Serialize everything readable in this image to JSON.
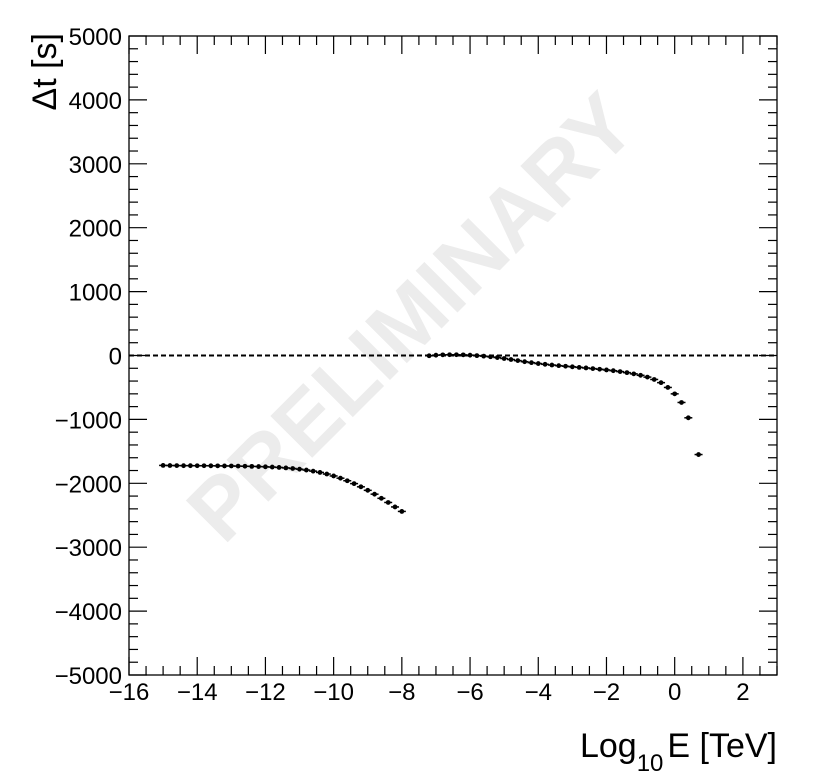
{
  "chart_data": {
    "type": "scatter",
    "title": "",
    "xlabel_main": "Log",
    "xlabel_sub": "10",
    "xlabel_rest": "E [TeV]",
    "ylabel": "Δt [s]",
    "watermark": "PRELIMINARY",
    "xlim": [
      -16,
      3
    ],
    "ylim": [
      -5000,
      5000
    ],
    "x_ticks": [
      -16,
      -14,
      -12,
      -10,
      -8,
      -6,
      -4,
      -2,
      0,
      2
    ],
    "x_tick_labels": [
      "−16",
      "−14",
      "−12",
      "−10",
      "−8",
      "−6",
      "−4",
      "−2",
      "0",
      "2"
    ],
    "y_ticks": [
      -5000,
      -4000,
      -3000,
      -2000,
      -1000,
      0,
      1000,
      2000,
      3000,
      4000,
      5000
    ],
    "y_tick_labels": [
      "−5000",
      "−4000",
      "−3000",
      "−2000",
      "−1000",
      "0",
      "1000",
      "2000",
      "3000",
      "4000",
      "5000"
    ],
    "grid": false,
    "reference_line": {
      "y": 0,
      "style": "dashed"
    },
    "series": [
      {
        "points": [
          [
            -15.0,
            -1720
          ],
          [
            -14.8,
            -1722
          ],
          [
            -14.6,
            -1723
          ],
          [
            -14.4,
            -1724
          ],
          [
            -14.2,
            -1724
          ],
          [
            -14.0,
            -1725
          ],
          [
            -13.8,
            -1725
          ],
          [
            -13.6,
            -1726
          ],
          [
            -13.4,
            -1727
          ],
          [
            -13.2,
            -1728
          ],
          [
            -13.0,
            -1729
          ],
          [
            -12.8,
            -1731
          ],
          [
            -12.6,
            -1733
          ],
          [
            -12.4,
            -1735
          ],
          [
            -12.2,
            -1738
          ],
          [
            -12.0,
            -1742
          ],
          [
            -11.8,
            -1746
          ],
          [
            -11.6,
            -1752
          ],
          [
            -11.4,
            -1759
          ],
          [
            -11.2,
            -1768
          ],
          [
            -11.0,
            -1779
          ],
          [
            -10.8,
            -1793
          ],
          [
            -10.6,
            -1810
          ],
          [
            -10.4,
            -1830
          ],
          [
            -10.2,
            -1855
          ],
          [
            -10.0,
            -1885
          ],
          [
            -9.8,
            -1920
          ],
          [
            -9.6,
            -1960
          ],
          [
            -9.4,
            -2005
          ],
          [
            -9.2,
            -2055
          ],
          [
            -9.0,
            -2110
          ],
          [
            -8.8,
            -2170
          ],
          [
            -8.6,
            -2235
          ],
          [
            -8.4,
            -2300
          ],
          [
            -8.2,
            -2370
          ],
          [
            -8.0,
            -2440
          ],
          [
            -7.2,
            -4
          ],
          [
            -7.0,
            5
          ],
          [
            -6.8,
            10
          ],
          [
            -6.6,
            12
          ],
          [
            -6.4,
            12
          ],
          [
            -6.2,
            10
          ],
          [
            -6.0,
            5
          ],
          [
            -5.8,
            -2
          ],
          [
            -5.6,
            -10
          ],
          [
            -5.4,
            -20
          ],
          [
            -5.2,
            -32
          ],
          [
            -5.0,
            -47
          ],
          [
            -4.8,
            -63
          ],
          [
            -4.6,
            -80
          ],
          [
            -4.4,
            -97
          ],
          [
            -4.2,
            -112
          ],
          [
            -4.0,
            -126
          ],
          [
            -3.8,
            -138
          ],
          [
            -3.6,
            -149
          ],
          [
            -3.4,
            -159
          ],
          [
            -3.2,
            -168
          ],
          [
            -3.0,
            -177
          ],
          [
            -2.8,
            -186
          ],
          [
            -2.6,
            -195
          ],
          [
            -2.4,
            -205
          ],
          [
            -2.2,
            -215
          ],
          [
            -2.0,
            -226
          ],
          [
            -1.8,
            -238
          ],
          [
            -1.6,
            -252
          ],
          [
            -1.4,
            -268
          ],
          [
            -1.2,
            -287
          ],
          [
            -1.0,
            -310
          ],
          [
            -0.8,
            -338
          ],
          [
            -0.6,
            -375
          ],
          [
            -0.4,
            -425
          ],
          [
            -0.2,
            -500
          ],
          [
            0.0,
            -600
          ],
          [
            0.2,
            -735
          ],
          [
            0.4,
            -975
          ],
          [
            0.7,
            -1550
          ]
        ]
      }
    ]
  }
}
